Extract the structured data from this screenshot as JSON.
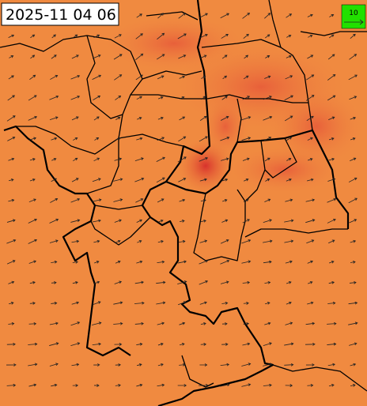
{
  "header": {
    "timestamp": "2025-11 04 06"
  },
  "legend": {
    "label": "10"
  }
}
